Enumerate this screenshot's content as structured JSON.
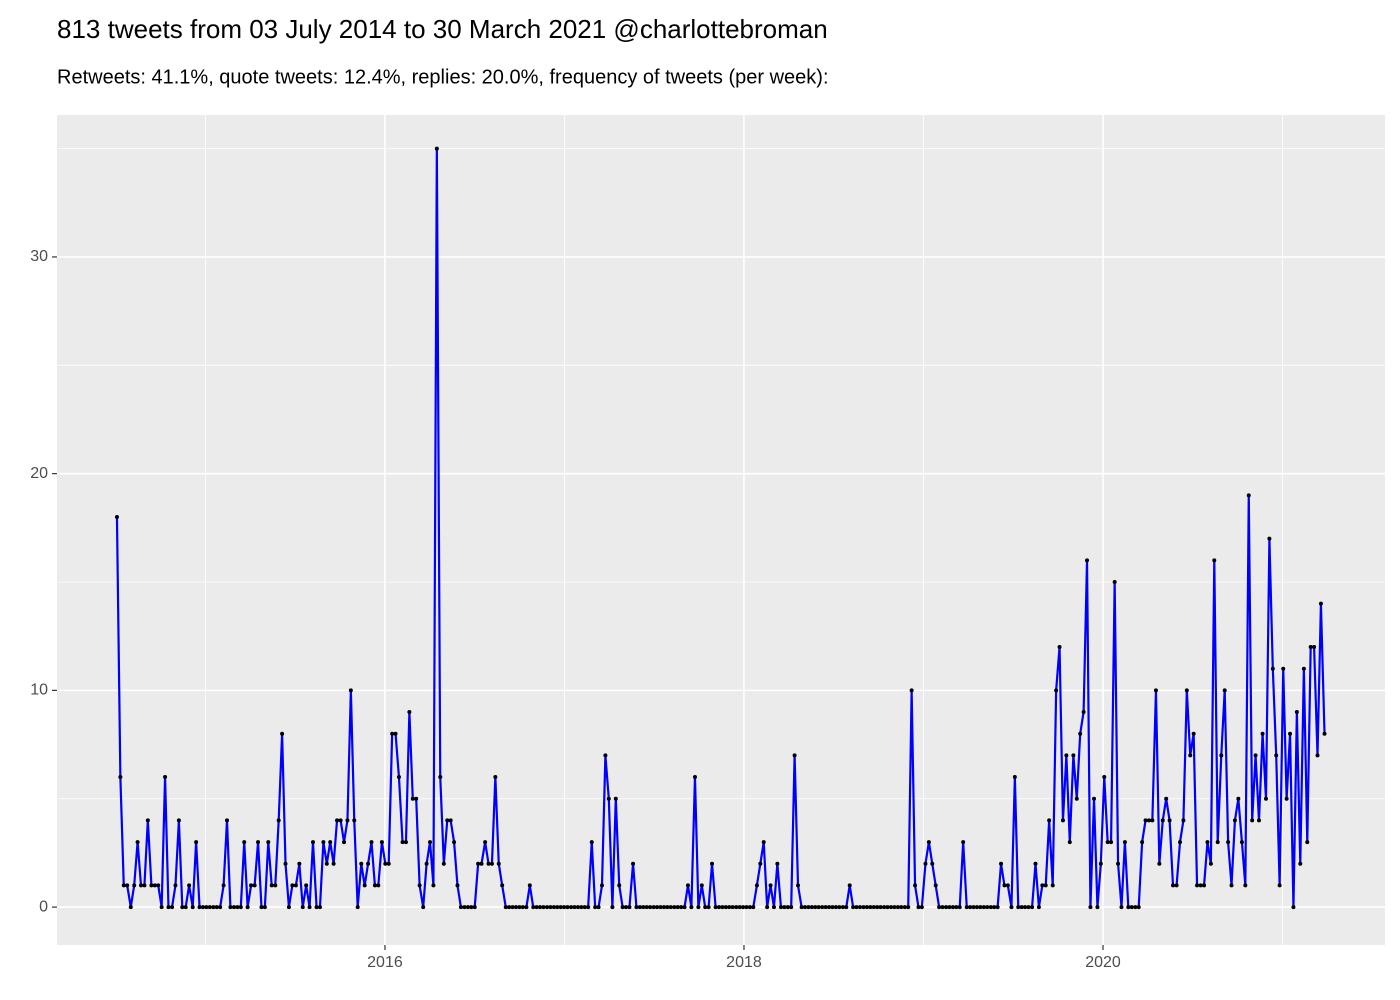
{
  "chart_data": {
    "type": "line",
    "title": "813 tweets from 03 July 2014 to 30 March 2021 @charlottebroman",
    "subtitle": "Retweets: 41.1%, quote tweets: 12.4%, replies: 20.0%, frequency of tweets (per week):",
    "x": [
      2014.507,
      2014.526,
      2014.545,
      2014.564,
      2014.584,
      2014.603,
      2014.622,
      2014.641,
      2014.66,
      2014.679,
      2014.699,
      2014.718,
      2014.737,
      2014.756,
      2014.775,
      2014.794,
      2014.814,
      2014.833,
      2014.852,
      2014.871,
      2014.89,
      2014.909,
      2014.929,
      2014.948,
      2014.967,
      2014.986,
      2015.005,
      2015.024,
      2015.044,
      2015.063,
      2015.082,
      2015.101,
      2015.12,
      2015.139,
      2015.159,
      2015.178,
      2015.197,
      2015.216,
      2015.235,
      2015.254,
      2015.274,
      2015.293,
      2015.312,
      2015.331,
      2015.35,
      2015.369,
      2015.389,
      2015.408,
      2015.427,
      2015.446,
      2015.465,
      2015.484,
      2015.504,
      2015.523,
      2015.542,
      2015.561,
      2015.58,
      2015.599,
      2015.619,
      2015.638,
      2015.657,
      2015.676,
      2015.695,
      2015.714,
      2015.733,
      2015.753,
      2015.772,
      2015.791,
      2015.81,
      2015.829,
      2015.848,
      2015.868,
      2015.887,
      2015.906,
      2015.925,
      2015.944,
      2015.963,
      2015.983,
      2016.002,
      2016.021,
      2016.04,
      2016.059,
      2016.078,
      2016.098,
      2016.117,
      2016.136,
      2016.155,
      2016.174,
      2016.193,
      2016.213,
      2016.232,
      2016.251,
      2016.27,
      2016.289,
      2016.308,
      2016.328,
      2016.347,
      2016.366,
      2016.385,
      2016.404,
      2016.423,
      2016.443,
      2016.462,
      2016.481,
      2016.5,
      2016.519,
      2016.538,
      2016.558,
      2016.577,
      2016.596,
      2016.615,
      2016.634,
      2016.653,
      2016.673,
      2016.692,
      2016.711,
      2016.73,
      2016.749,
      2016.768,
      2016.788,
      2016.807,
      2016.826,
      2016.845,
      2016.864,
      2016.883,
      2016.903,
      2016.922,
      2016.941,
      2016.96,
      2016.979,
      2016.998,
      2017.017,
      2017.037,
      2017.056,
      2017.075,
      2017.094,
      2017.113,
      2017.132,
      2017.152,
      2017.171,
      2017.19,
      2017.209,
      2017.228,
      2017.247,
      2017.267,
      2017.286,
      2017.305,
      2017.324,
      2017.343,
      2017.362,
      2017.382,
      2017.401,
      2017.42,
      2017.439,
      2017.458,
      2017.477,
      2017.497,
      2017.516,
      2017.535,
      2017.554,
      2017.573,
      2017.592,
      2017.612,
      2017.631,
      2017.65,
      2017.669,
      2017.688,
      2017.707,
      2017.727,
      2017.746,
      2017.765,
      2017.784,
      2017.803,
      2017.822,
      2017.842,
      2017.861,
      2017.88,
      2017.899,
      2017.918,
      2017.937,
      2017.957,
      2017.976,
      2017.995,
      2018.014,
      2018.033,
      2018.052,
      2018.072,
      2018.091,
      2018.11,
      2018.129,
      2018.148,
      2018.167,
      2018.186,
      2018.206,
      2018.225,
      2018.244,
      2018.263,
      2018.282,
      2018.301,
      2018.321,
      2018.34,
      2018.359,
      2018.378,
      2018.397,
      2018.416,
      2018.436,
      2018.455,
      2018.474,
      2018.493,
      2018.512,
      2018.531,
      2018.551,
      2018.57,
      2018.589,
      2018.608,
      2018.627,
      2018.646,
      2018.666,
      2018.685,
      2018.704,
      2018.723,
      2018.742,
      2018.761,
      2018.781,
      2018.8,
      2018.819,
      2018.838,
      2018.857,
      2018.876,
      2018.896,
      2018.915,
      2018.934,
      2018.953,
      2018.972,
      2018.991,
      2019.011,
      2019.03,
      2019.049,
      2019.068,
      2019.087,
      2019.106,
      2019.126,
      2019.145,
      2019.164,
      2019.183,
      2019.202,
      2019.221,
      2019.241,
      2019.26,
      2019.279,
      2019.298,
      2019.317,
      2019.336,
      2019.355,
      2019.375,
      2019.394,
      2019.413,
      2019.432,
      2019.451,
      2019.47,
      2019.49,
      2019.509,
      2019.528,
      2019.547,
      2019.566,
      2019.585,
      2019.605,
      2019.624,
      2019.643,
      2019.662,
      2019.681,
      2019.7,
      2019.72,
      2019.739,
      2019.758,
      2019.777,
      2019.796,
      2019.815,
      2019.835,
      2019.854,
      2019.873,
      2019.892,
      2019.911,
      2019.93,
      2019.95,
      2019.969,
      2019.988,
      2020.007,
      2020.026,
      2020.045,
      2020.065,
      2020.084,
      2020.103,
      2020.122,
      2020.141,
      2020.16,
      2020.18,
      2020.199,
      2020.218,
      2020.237,
      2020.256,
      2020.275,
      2020.295,
      2020.314,
      2020.333,
      2020.352,
      2020.371,
      2020.39,
      2020.41,
      2020.429,
      2020.448,
      2020.467,
      2020.486,
      2020.505,
      2020.524,
      2020.544,
      2020.563,
      2020.582,
      2020.601,
      2020.62,
      2020.639,
      2020.659,
      2020.678,
      2020.697,
      2020.716,
      2020.735,
      2020.754,
      2020.774,
      2020.793,
      2020.812,
      2020.831,
      2020.85,
      2020.869,
      2020.889,
      2020.908,
      2020.927,
      2020.946,
      2020.965,
      2020.984,
      2021.004,
      2021.023,
      2021.042,
      2021.061,
      2021.08,
      2021.099,
      2021.119,
      2021.138,
      2021.157,
      2021.176,
      2021.195,
      2021.214,
      2021.234
    ],
    "series": [
      {
        "name": "tweets per week",
        "color": "#0000ff",
        "point_color": "#000000",
        "values": [
          18,
          6,
          1,
          1,
          0,
          1,
          3,
          1,
          1,
          4,
          1,
          1,
          1,
          0,
          6,
          0,
          0,
          1,
          4,
          0,
          0,
          1,
          0,
          3,
          0,
          0,
          0,
          0,
          0,
          0,
          0,
          1,
          4,
          0,
          0,
          0,
          0,
          3,
          0,
          1,
          1,
          3,
          0,
          0,
          3,
          1,
          1,
          4,
          8,
          2,
          0,
          1,
          1,
          2,
          0,
          1,
          0,
          3,
          0,
          0,
          3,
          2,
          3,
          2,
          4,
          4,
          3,
          4,
          10,
          4,
          0,
          2,
          1,
          2,
          3,
          1,
          1,
          3,
          2,
          2,
          8,
          8,
          6,
          3,
          3,
          9,
          5,
          5,
          1,
          0,
          2,
          3,
          1,
          35,
          6,
          2,
          4,
          4,
          3,
          1,
          0,
          0,
          0,
          0,
          0,
          2,
          2,
          3,
          2,
          2,
          6,
          2,
          1,
          0,
          0,
          0,
          0,
          0,
          0,
          0,
          1,
          0,
          0,
          0,
          0,
          0,
          0,
          0,
          0,
          0,
          0,
          0,
          0,
          0,
          0,
          0,
          0,
          0,
          3,
          0,
          0,
          1,
          7,
          5,
          0,
          5,
          1,
          0,
          0,
          0,
          2,
          0,
          0,
          0,
          0,
          0,
          0,
          0,
          0,
          0,
          0,
          0,
          0,
          0,
          0,
          0,
          1,
          0,
          6,
          0,
          1,
          0,
          0,
          2,
          0,
          0,
          0,
          0,
          0,
          0,
          0,
          0,
          0,
          0,
          0,
          0,
          1,
          2,
          3,
          0,
          1,
          0,
          2,
          0,
          0,
          0,
          0,
          7,
          1,
          0,
          0,
          0,
          0,
          0,
          0,
          0,
          0,
          0,
          0,
          0,
          0,
          0,
          0,
          1,
          0,
          0,
          0,
          0,
          0,
          0,
          0,
          0,
          0,
          0,
          0,
          0,
          0,
          0,
          0,
          0,
          0,
          10,
          1,
          0,
          0,
          2,
          3,
          2,
          1,
          0,
          0,
          0,
          0,
          0,
          0,
          0,
          3,
          0,
          0,
          0,
          0,
          0,
          0,
          0,
          0,
          0,
          0,
          2,
          1,
          1,
          0,
          6,
          0,
          0,
          0,
          0,
          0,
          2,
          0,
          1,
          1,
          4,
          1,
          10,
          12,
          4,
          7,
          3,
          7,
          5,
          8,
          9,
          16,
          0,
          5,
          0,
          2,
          6,
          3,
          3,
          15,
          2,
          0,
          3,
          0,
          0,
          0,
          0,
          3,
          4,
          4,
          4,
          10,
          2,
          4,
          5,
          4,
          1,
          1,
          3,
          4,
          10,
          7,
          8,
          1,
          1,
          1,
          3,
          2,
          16,
          3,
          7,
          10,
          3,
          1,
          4,
          5,
          3,
          1,
          19,
          4,
          7,
          4,
          8,
          5,
          17,
          11,
          7,
          1,
          11,
          5,
          8,
          0,
          9,
          2,
          11,
          3,
          12,
          12,
          7,
          14,
          8
        ]
      }
    ],
    "xlim": [
      2014.173,
      2021.571
    ],
    "xticks": [
      2016,
      2018,
      2020
    ],
    "ylim": [
      -1.75,
      36.55
    ],
    "yticks": [
      0,
      10,
      20,
      30
    ],
    "grid": true,
    "legend": false
  }
}
